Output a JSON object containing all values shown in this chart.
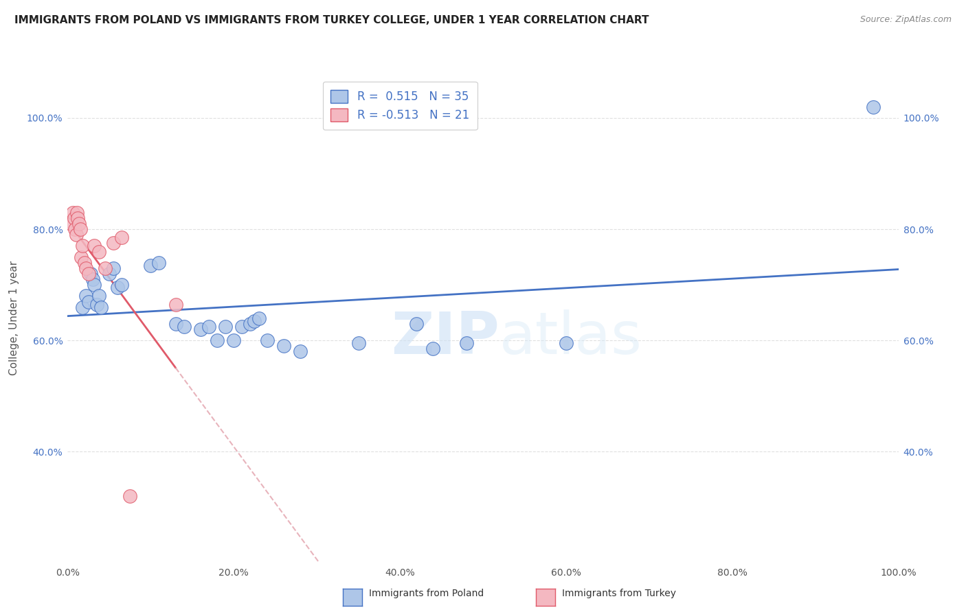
{
  "title": "IMMIGRANTS FROM POLAND VS IMMIGRANTS FROM TURKEY COLLEGE, UNDER 1 YEAR CORRELATION CHART",
  "source": "Source: ZipAtlas.com",
  "ylabel": "College, Under 1 year",
  "xlim": [
    0,
    1
  ],
  "ylim": [
    0.2,
    1.08
  ],
  "poland_x": [
    0.018,
    0.022,
    0.025,
    0.028,
    0.03,
    0.032,
    0.035,
    0.038,
    0.04,
    0.05,
    0.055,
    0.06,
    0.065,
    0.1,
    0.11,
    0.13,
    0.14,
    0.16,
    0.17,
    0.18,
    0.19,
    0.2,
    0.21,
    0.22,
    0.225,
    0.23,
    0.24,
    0.26,
    0.28,
    0.35,
    0.42,
    0.44,
    0.48,
    0.97,
    0.6
  ],
  "poland_y": [
    0.66,
    0.68,
    0.67,
    0.72,
    0.71,
    0.7,
    0.665,
    0.68,
    0.66,
    0.72,
    0.73,
    0.695,
    0.7,
    0.735,
    0.74,
    0.63,
    0.625,
    0.62,
    0.625,
    0.6,
    0.625,
    0.6,
    0.625,
    0.63,
    0.635,
    0.64,
    0.6,
    0.59,
    0.58,
    0.595,
    0.63,
    0.585,
    0.595,
    1.02,
    0.595
  ],
  "turkey_x": [
    0.004,
    0.006,
    0.008,
    0.009,
    0.01,
    0.011,
    0.012,
    0.014,
    0.015,
    0.016,
    0.018,
    0.02,
    0.022,
    0.025,
    0.032,
    0.038,
    0.045,
    0.055,
    0.065,
    0.075,
    0.13
  ],
  "turkey_y": [
    0.81,
    0.83,
    0.82,
    0.8,
    0.79,
    0.83,
    0.82,
    0.81,
    0.8,
    0.75,
    0.77,
    0.74,
    0.73,
    0.72,
    0.77,
    0.76,
    0.73,
    0.775,
    0.785,
    0.32,
    0.665
  ],
  "poland_R": 0.515,
  "poland_N": 35,
  "turkey_R": -0.513,
  "turkey_N": 21,
  "poland_color": "#aec6e8",
  "turkey_color": "#f4b8c1",
  "poland_line_color": "#4472c4",
  "turkey_line_color": "#e05a6a",
  "turkey_dashed_color": "#e8b4bc",
  "legend_label_poland": "Immigrants from Poland",
  "legend_label_turkey": "Immigrants from Turkey",
  "watermark_zip": "ZIP",
  "watermark_atlas": "atlas",
  "background_color": "#ffffff",
  "grid_color": "#e0e0e0",
  "yticks": [
    0.4,
    0.6,
    0.8,
    1.0
  ],
  "xticks": [
    0.0,
    0.2,
    0.4,
    0.6,
    0.8,
    1.0
  ]
}
